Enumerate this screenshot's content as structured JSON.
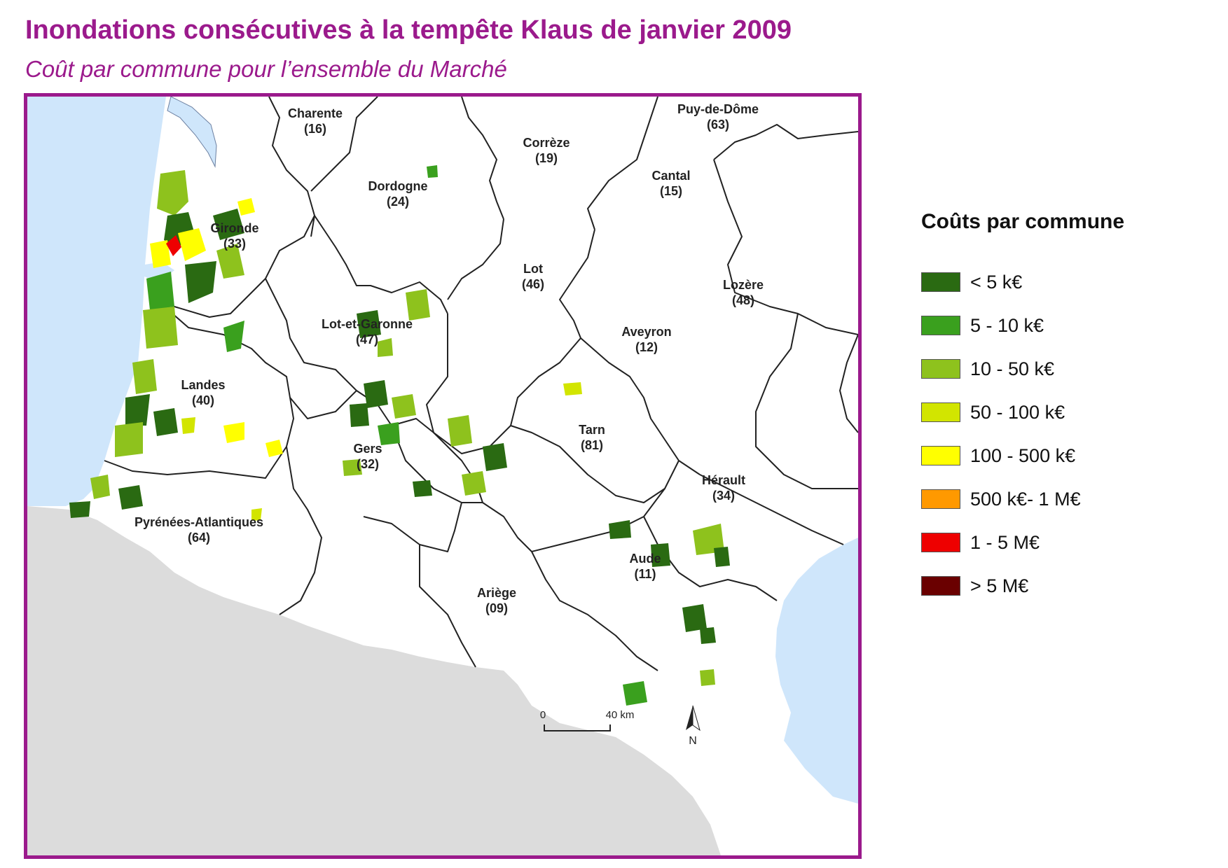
{
  "title": "Inondations consécutives à la tempête Klaus de janvier 2009",
  "subtitle": "Coût par commune pour l’ensemble du Marché",
  "departments": [
    {
      "name": "Charente",
      "code": "(16)"
    },
    {
      "name": "Puy-de-Dôme",
      "code": "(63)"
    },
    {
      "name": "Corrèze",
      "code": "(19)"
    },
    {
      "name": "Dordogne",
      "code": "(24)"
    },
    {
      "name": "Cantal",
      "code": "(15)"
    },
    {
      "name": "Gironde",
      "code": "(33)"
    },
    {
      "name": "Lot",
      "code": "(46)"
    },
    {
      "name": "Lozère",
      "code": "(48)"
    },
    {
      "name": "Lot-et-Garonne",
      "code": "(47)"
    },
    {
      "name": "Aveyron",
      "code": "(12)"
    },
    {
      "name": "Landes",
      "code": "(40)"
    },
    {
      "name": "Tarn",
      "code": "(81)"
    },
    {
      "name": "Gers",
      "code": "(32)"
    },
    {
      "name": "Hérault",
      "code": "(34)"
    },
    {
      "name": "Pyrénées-Atlantiques",
      "code": "(64)"
    },
    {
      "name": "Aude",
      "code": "(11)"
    },
    {
      "name": "Ariège",
      "code": "(09)"
    }
  ],
  "scale_bar": {
    "start": "0",
    "end": "40 km"
  },
  "north_label": "N",
  "legend": {
    "title": "Coûts par commune",
    "items": [
      {
        "label": "< 5 k€",
        "color": "#2a6a12"
      },
      {
        "label": "5 - 10 k€",
        "color": "#3aa01e"
      },
      {
        "label": "10 - 50 k€",
        "color": "#8ec21d"
      },
      {
        "label": "50 - 100 k€",
        "color": "#d2e500"
      },
      {
        "label": "100 - 500 k€",
        "color": "#ffff00"
      },
      {
        "label": "500 k€- 1 M€",
        "color": "#ff9900"
      },
      {
        "label": "1 - 5 M€",
        "color": "#ee0000"
      },
      {
        "label": "> 5 M€",
        "color": "#6a0000"
      }
    ]
  },
  "colors": {
    "sea": "#cfe6fb",
    "foreign": "#dcdcdc",
    "frame": "#9b1a8c",
    "title": "#9b1a8c"
  }
}
